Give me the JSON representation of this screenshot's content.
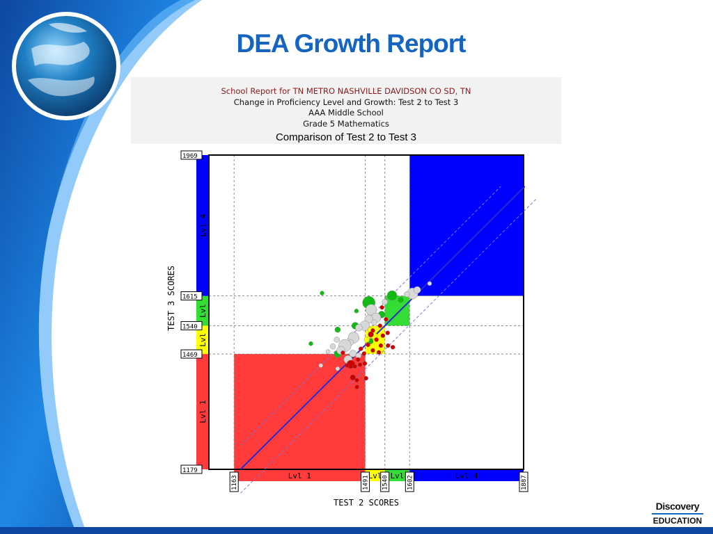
{
  "slide": {
    "title": "DEA Growth Report",
    "logo": {
      "line1": "Discovery",
      "line2": "EDUCATION"
    }
  },
  "report": {
    "school_line": "School Report for TN METRO NASHVILLE DAVIDSON CO SD, TN",
    "subtitle": "Change in Proficiency Level and Growth: Test 2 to Test 3",
    "school": "AAA Middle School",
    "grade": "Grade 5 Mathematics",
    "comparison": "Comparison of Test 2 to Test 3"
  },
  "chart_data": {
    "type": "scatter",
    "xlabel": "TEST 2 SCORES",
    "ylabel": "TEST 3 SCORES",
    "xlim": [
      1100,
      1887
    ],
    "ylim": [
      1179,
      1969
    ],
    "x_ticks": [
      1163,
      1491,
      1540,
      1602,
      1887
    ],
    "y_ticks": [
      1179,
      1469,
      1540,
      1615,
      1969
    ],
    "x_levels": [
      {
        "label": "Lvl 1",
        "from": 1163,
        "to": 1491,
        "color": "#ff3b3b"
      },
      {
        "label": "Lvl",
        "from": 1491,
        "to": 1540,
        "color": "#ffff00"
      },
      {
        "label": "Lvl",
        "from": 1540,
        "to": 1602,
        "color": "#33dd33"
      },
      {
        "label": "Lvl 4",
        "from": 1602,
        "to": 1887,
        "color": "#0000ff"
      }
    ],
    "y_levels": [
      {
        "label": "Lvl 1",
        "from": 1179,
        "to": 1469,
        "color": "#ff3b3b"
      },
      {
        "label": "Lvl",
        "from": 1469,
        "to": 1540,
        "color": "#ffff00"
      },
      {
        "label": "Lvl",
        "from": 1540,
        "to": 1615,
        "color": "#33dd33"
      },
      {
        "label": "Lvl 4",
        "from": 1615,
        "to": 1969,
        "color": "#0000ff"
      }
    ],
    "colors": {
      "red": "#cc0000",
      "green": "#11bb11",
      "gray": "#d8d8d8",
      "yellow": "#ffff00",
      "blue": "#0000ff",
      "trend": "#2a2ad0",
      "guide": "#7777dd"
    },
    "points": [
      {
        "x": 1383,
        "y": 1622,
        "c": "green",
        "s": 3
      },
      {
        "x": 1355,
        "y": 1495,
        "c": "green",
        "s": 3
      },
      {
        "x": 1422,
        "y": 1530,
        "c": "green",
        "s": 4
      },
      {
        "x": 1422,
        "y": 1469,
        "c": "green",
        "s": 5
      },
      {
        "x": 1458,
        "y": 1516,
        "c": "green",
        "s": 4
      },
      {
        "x": 1466,
        "y": 1540,
        "c": "green",
        "s": 5
      },
      {
        "x": 1469,
        "y": 1577,
        "c": "green",
        "s": 3
      },
      {
        "x": 1500,
        "y": 1598,
        "c": "green",
        "s": 9
      },
      {
        "x": 1532,
        "y": 1568,
        "c": "green",
        "s": 5
      },
      {
        "x": 1558,
        "y": 1616,
        "c": "green",
        "s": 7
      },
      {
        "x": 1580,
        "y": 1605,
        "c": "green",
        "s": 4
      },
      {
        "x": 1504,
        "y": 1501,
        "c": "green",
        "s": 4
      },
      {
        "x": 1609,
        "y": 1621,
        "c": "gray",
        "s": 8
      },
      {
        "x": 1621,
        "y": 1630,
        "c": "gray",
        "s": 5
      },
      {
        "x": 1652,
        "y": 1646,
        "c": "gray",
        "s": 3
      },
      {
        "x": 1595,
        "y": 1619,
        "c": "gray",
        "s": 4
      },
      {
        "x": 1506,
        "y": 1580,
        "c": "gray",
        "s": 8
      },
      {
        "x": 1518,
        "y": 1560,
        "c": "gray",
        "s": 7
      },
      {
        "x": 1500,
        "y": 1557,
        "c": "gray",
        "s": 6
      },
      {
        "x": 1490,
        "y": 1540,
        "c": "gray",
        "s": 7
      },
      {
        "x": 1475,
        "y": 1535,
        "c": "gray",
        "s": 5
      },
      {
        "x": 1462,
        "y": 1510,
        "c": "gray",
        "s": 8
      },
      {
        "x": 1455,
        "y": 1498,
        "c": "gray",
        "s": 4
      },
      {
        "x": 1440,
        "y": 1490,
        "c": "gray",
        "s": 9
      },
      {
        "x": 1430,
        "y": 1478,
        "c": "gray",
        "s": 6
      },
      {
        "x": 1420,
        "y": 1505,
        "c": "gray",
        "s": 4
      },
      {
        "x": 1410,
        "y": 1488,
        "c": "gray",
        "s": 4
      },
      {
        "x": 1460,
        "y": 1470,
        "c": "gray",
        "s": 5
      },
      {
        "x": 1448,
        "y": 1455,
        "c": "gray",
        "s": 6
      },
      {
        "x": 1474,
        "y": 1465,
        "c": "gray",
        "s": 4
      },
      {
        "x": 1540,
        "y": 1600,
        "c": "gray",
        "s": 4
      },
      {
        "x": 1380,
        "y": 1440,
        "c": "gray",
        "s": 3
      },
      {
        "x": 1422,
        "y": 1432,
        "c": "gray",
        "s": 3
      },
      {
        "x": 1513,
        "y": 1548,
        "c": "gray",
        "s": 4
      },
      {
        "x": 1398,
        "y": 1475,
        "c": "gray",
        "s": 3
      },
      {
        "x": 1512,
        "y": 1515,
        "c": "yellow",
        "s": 5
      },
      {
        "x": 1504,
        "y": 1530,
        "c": "yellow",
        "s": 4
      },
      {
        "x": 1495,
        "y": 1505,
        "c": "yellow",
        "s": 4
      },
      {
        "x": 1533,
        "y": 1586,
        "c": "red",
        "s": 3
      },
      {
        "x": 1543,
        "y": 1556,
        "c": "red",
        "s": 3
      },
      {
        "x": 1528,
        "y": 1540,
        "c": "red",
        "s": 3
      },
      {
        "x": 1510,
        "y": 1528,
        "c": "red",
        "s": 3
      },
      {
        "x": 1505,
        "y": 1518,
        "c": "red",
        "s": 4
      },
      {
        "x": 1519,
        "y": 1505,
        "c": "red",
        "s": 3
      },
      {
        "x": 1535,
        "y": 1515,
        "c": "red",
        "s": 3
      },
      {
        "x": 1547,
        "y": 1522,
        "c": "red",
        "s": 3
      },
      {
        "x": 1530,
        "y": 1490,
        "c": "red",
        "s": 3
      },
      {
        "x": 1548,
        "y": 1490,
        "c": "red",
        "s": 3
      },
      {
        "x": 1560,
        "y": 1486,
        "c": "red",
        "s": 3
      },
      {
        "x": 1498,
        "y": 1492,
        "c": "red",
        "s": 3
      },
      {
        "x": 1510,
        "y": 1478,
        "c": "red",
        "s": 3
      },
      {
        "x": 1525,
        "y": 1473,
        "c": "red",
        "s": 3
      },
      {
        "x": 1480,
        "y": 1482,
        "c": "red",
        "s": 3
      },
      {
        "x": 1488,
        "y": 1470,
        "c": "red",
        "s": 3
      },
      {
        "x": 1473,
        "y": 1455,
        "c": "red",
        "s": 3
      },
      {
        "x": 1455,
        "y": 1443,
        "c": "red",
        "s": 6
      },
      {
        "x": 1446,
        "y": 1440,
        "c": "red",
        "s": 3
      },
      {
        "x": 1465,
        "y": 1438,
        "c": "red",
        "s": 3
      },
      {
        "x": 1478,
        "y": 1442,
        "c": "red",
        "s": 3
      },
      {
        "x": 1490,
        "y": 1445,
        "c": "red",
        "s": 3
      },
      {
        "x": 1460,
        "y": 1410,
        "c": "red",
        "s": 4
      },
      {
        "x": 1470,
        "y": 1403,
        "c": "red",
        "s": 3
      },
      {
        "x": 1493,
        "y": 1408,
        "c": "red",
        "s": 3
      },
      {
        "x": 1470,
        "y": 1386,
        "c": "red",
        "s": 3
      },
      {
        "x": 1435,
        "y": 1472,
        "c": "red",
        "s": 3
      }
    ]
  }
}
